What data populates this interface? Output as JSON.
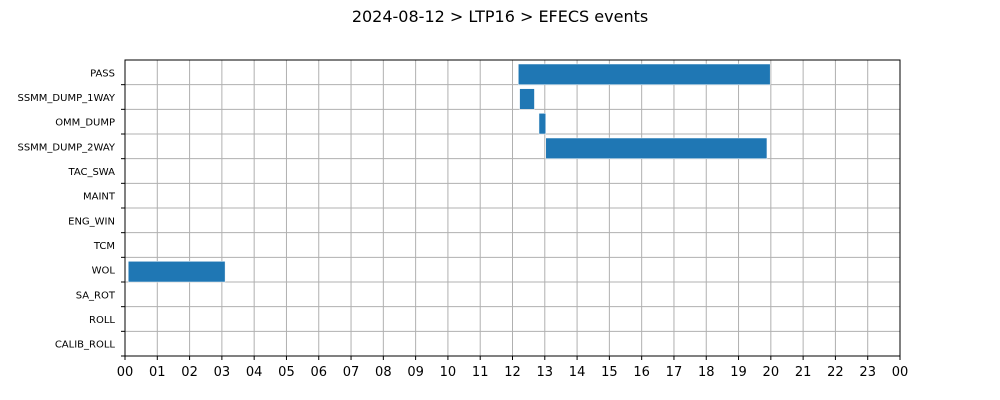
{
  "chart_data": {
    "type": "bar",
    "orientation": "horizontal-gantt",
    "title": "2024-08-12 > LTP16 > EFECS events",
    "xlabel": "",
    "ylabel": "",
    "grid": true,
    "xlim": [
      0,
      24
    ],
    "x_tick_labels": [
      "00",
      "01",
      "02",
      "03",
      "04",
      "05",
      "06",
      "07",
      "08",
      "09",
      "10",
      "11",
      "12",
      "13",
      "14",
      "15",
      "16",
      "17",
      "18",
      "19",
      "20",
      "21",
      "22",
      "23",
      "00"
    ],
    "categories": [
      "PASS",
      "SSMM_DUMP_1WAY",
      "OMM_DUMP",
      "SSMM_DUMP_2WAY",
      "TAC_SWA",
      "MAINT",
      "ENG_WIN",
      "TCM",
      "WOL",
      "SA_ROT",
      "ROLL",
      "CALIB_ROLL"
    ],
    "bar_color": "#1f77b4",
    "events": [
      {
        "category": "PASS",
        "start": 12.18,
        "end": 19.98
      },
      {
        "category": "SSMM_DUMP_1WAY",
        "start": 12.22,
        "end": 12.68
      },
      {
        "category": "OMM_DUMP",
        "start": 12.82,
        "end": 13.03
      },
      {
        "category": "SSMM_DUMP_2WAY",
        "start": 13.03,
        "end": 19.88
      },
      {
        "category": "WOL",
        "start": 0.1,
        "end": 3.1
      }
    ]
  }
}
